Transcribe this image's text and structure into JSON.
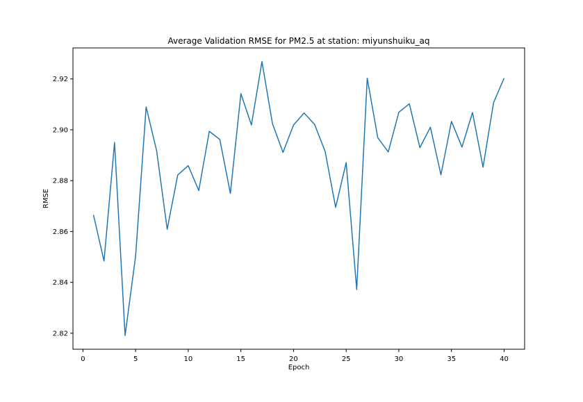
{
  "chart_data": {
    "type": "line",
    "title": "Average Validation RMSE for PM2.5 at station: miyunshuiku_aq",
    "xlabel": "Epoch",
    "ylabel": "RMSE",
    "xlim": [
      -0.95,
      41.95
    ],
    "ylim": [
      2.8137,
      2.9322
    ],
    "x_ticks": [
      0,
      5,
      10,
      15,
      20,
      25,
      30,
      35,
      40
    ],
    "y_ticks": [
      2.82,
      2.84,
      2.86,
      2.88,
      2.9,
      2.92
    ],
    "x_tick_labels": [
      "0",
      "5",
      "10",
      "15",
      "20",
      "25",
      "30",
      "35",
      "40"
    ],
    "y_tick_labels": [
      "2.82",
      "2.84",
      "2.86",
      "2.88",
      "2.90",
      "2.92"
    ],
    "grid": false,
    "legend": "none",
    "series": [
      {
        "color": "#1f77b4",
        "x": [
          1,
          2,
          3,
          4,
          5,
          6,
          7,
          8,
          9,
          10,
          11,
          12,
          13,
          14,
          15,
          16,
          17,
          18,
          19,
          20,
          21,
          22,
          23,
          24,
          25,
          26,
          27,
          28,
          29,
          30,
          31,
          32,
          33,
          34,
          35,
          36,
          37,
          38,
          39,
          40
        ],
        "values": [
          2.8665,
          2.8484,
          2.895,
          2.8191,
          2.8503,
          2.909,
          2.8917,
          2.8609,
          2.8822,
          2.8859,
          2.8761,
          2.8994,
          2.8962,
          2.875,
          2.9142,
          2.9019,
          2.9268,
          2.9024,
          2.8911,
          2.9019,
          2.9066,
          2.9021,
          2.8915,
          2.8695,
          2.8871,
          2.8372,
          2.9203,
          2.8969,
          2.8913,
          2.9069,
          2.9102,
          2.893,
          2.901,
          2.8823,
          2.9033,
          2.8932,
          2.9068,
          2.8853,
          2.9107,
          2.9203
        ]
      }
    ]
  }
}
